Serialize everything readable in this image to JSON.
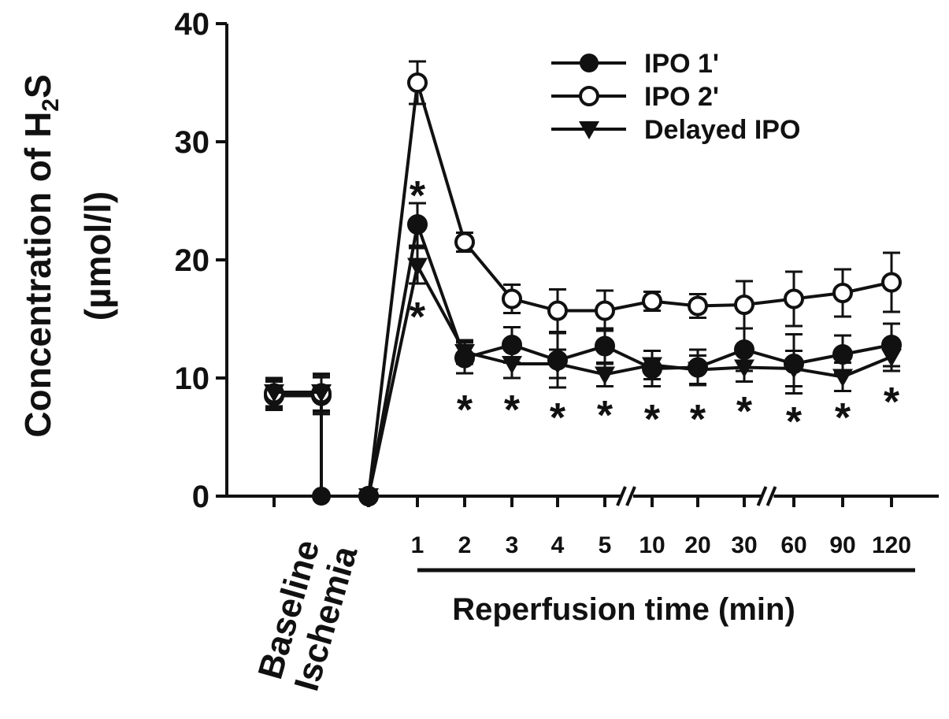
{
  "chart_data": {
    "type": "line",
    "ylabel": "Concentration of H2S",
    "ylabel_main": "Concentration of H",
    "ylabel_sub": "2",
    "ylabel_tail": "S",
    "yunit": "(µmol/l)",
    "xlabel": "Reperfusion time (min)",
    "ylim": [
      0,
      40
    ],
    "yticks": [
      0,
      10,
      20,
      30,
      40
    ],
    "categories": [
      "Baseline",
      "Ischemia",
      "1",
      "2",
      "3",
      "4",
      "5",
      "10",
      "20",
      "30",
      "60",
      "90",
      "120"
    ],
    "series": [
      {
        "name": "IPO 1'",
        "marker": "filled-circle",
        "values": [
          8.5,
          0,
          23.0,
          11.7,
          12.8,
          11.5,
          12.7,
          10.8,
          10.9,
          12.4,
          11.2,
          12.0,
          12.8
        ],
        "errors": [
          1.2,
          1.5,
          1.8,
          1.3,
          1.5,
          2.3,
          1.5,
          1.5,
          1.5,
          1.8,
          2.5,
          1.6,
          1.8
        ]
      },
      {
        "name": "IPO 2'",
        "marker": "open-circle",
        "values": [
          8.7,
          0,
          35.0,
          21.5,
          16.7,
          15.7,
          15.7,
          16.5,
          16.1,
          16.2,
          16.7,
          17.2,
          18.1
        ],
        "errors": [
          1.2,
          1.5,
          1.8,
          0.8,
          1.2,
          1.8,
          1.7,
          0.8,
          1.0,
          2.0,
          2.3,
          2.0,
          2.5
        ]
      },
      {
        "name": "Delayed IPO",
        "marker": "filled-triangle-down",
        "values": [
          8.8,
          0,
          19.5,
          12.2,
          11.2,
          11.2,
          10.3,
          11.1,
          10.7,
          10.9,
          10.8,
          10.1,
          11.8
        ],
        "errors": [
          1.2,
          1.5,
          1.5,
          1.0,
          1.2,
          1.2,
          1.0,
          1.2,
          1.2,
          1.2,
          1.5,
          1.2,
          1.2
        ]
      }
    ],
    "significance_above": [
      {
        "category": "1",
        "label": "*"
      }
    ],
    "significance_below": [
      {
        "category": "1",
        "label": "*"
      },
      {
        "category": "2",
        "label": "*"
      },
      {
        "category": "3",
        "label": "*"
      },
      {
        "category": "4",
        "label": "*"
      },
      {
        "category": "5",
        "label": "*"
      },
      {
        "category": "10",
        "label": "*"
      },
      {
        "category": "20",
        "label": "*"
      },
      {
        "category": "30",
        "label": "*"
      },
      {
        "category": "60",
        "label": "*"
      },
      {
        "category": "90",
        "label": "*"
      },
      {
        "category": "120",
        "label": "*"
      }
    ],
    "axis_breaks_after": [
      "5",
      "30"
    ],
    "legend_position": "top-right",
    "grid": false
  }
}
